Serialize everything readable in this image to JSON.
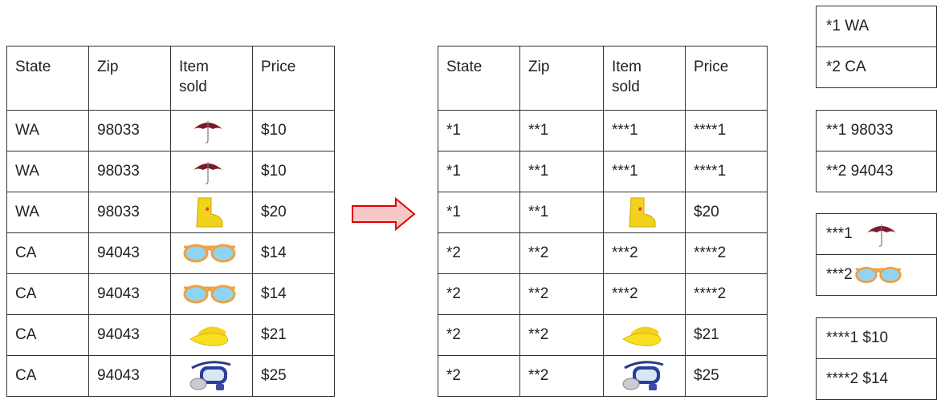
{
  "left_table": {
    "headers": [
      "State",
      "Zip",
      "Item\nsold",
      "Price"
    ],
    "rows": [
      {
        "state": "WA",
        "zip": "98033",
        "item": "umbrella-icon",
        "price": "$10"
      },
      {
        "state": "WA",
        "zip": "98033",
        "item": "umbrella-icon",
        "price": "$10"
      },
      {
        "state": "WA",
        "zip": "98033",
        "item": "rain-boot-icon",
        "price": "$20"
      },
      {
        "state": "CA",
        "zip": "94043",
        "item": "sunglasses-icon",
        "price": "$14"
      },
      {
        "state": "CA",
        "zip": "94043",
        "item": "sunglasses-icon",
        "price": "$14"
      },
      {
        "state": "CA",
        "zip": "94043",
        "item": "visor-cap-icon",
        "price": "$21"
      },
      {
        "state": "CA",
        "zip": "94043",
        "item": "snorkel-mask-icon",
        "price": "$25"
      }
    ]
  },
  "right_table": {
    "headers": [
      "State",
      "Zip",
      "Item\nsold",
      "Price"
    ],
    "rows": [
      {
        "state": "*1",
        "zip": "**1",
        "item": "***1",
        "price": "****1"
      },
      {
        "state": "*1",
        "zip": "**1",
        "item": "***1",
        "price": "****1"
      },
      {
        "state": "*1",
        "zip": "**1",
        "item": "rain-boot-icon",
        "price": "$20"
      },
      {
        "state": "*2",
        "zip": "**2",
        "item": "***2",
        "price": "****2"
      },
      {
        "state": "*2",
        "zip": "**2",
        "item": "***2",
        "price": "****2"
      },
      {
        "state": "*2",
        "zip": "**2",
        "item": "visor-cap-icon",
        "price": "$21"
      },
      {
        "state": "*2",
        "zip": "**2",
        "item": "snorkel-mask-icon",
        "price": "$25"
      }
    ]
  },
  "legends": {
    "state": [
      "*1 WA",
      "*2 CA"
    ],
    "zip": [
      "**1 98033",
      "**2 94043"
    ],
    "item": [
      {
        "code": "***1",
        "icon": "umbrella-icon"
      },
      {
        "code": "***2",
        "icon": "sunglasses-icon"
      }
    ],
    "price": [
      "****1 $10",
      "****2 $14"
    ]
  },
  "colors": {
    "arrow_fill": "#f8c8c8",
    "arrow_stroke": "#e00000",
    "border": "#333333"
  }
}
